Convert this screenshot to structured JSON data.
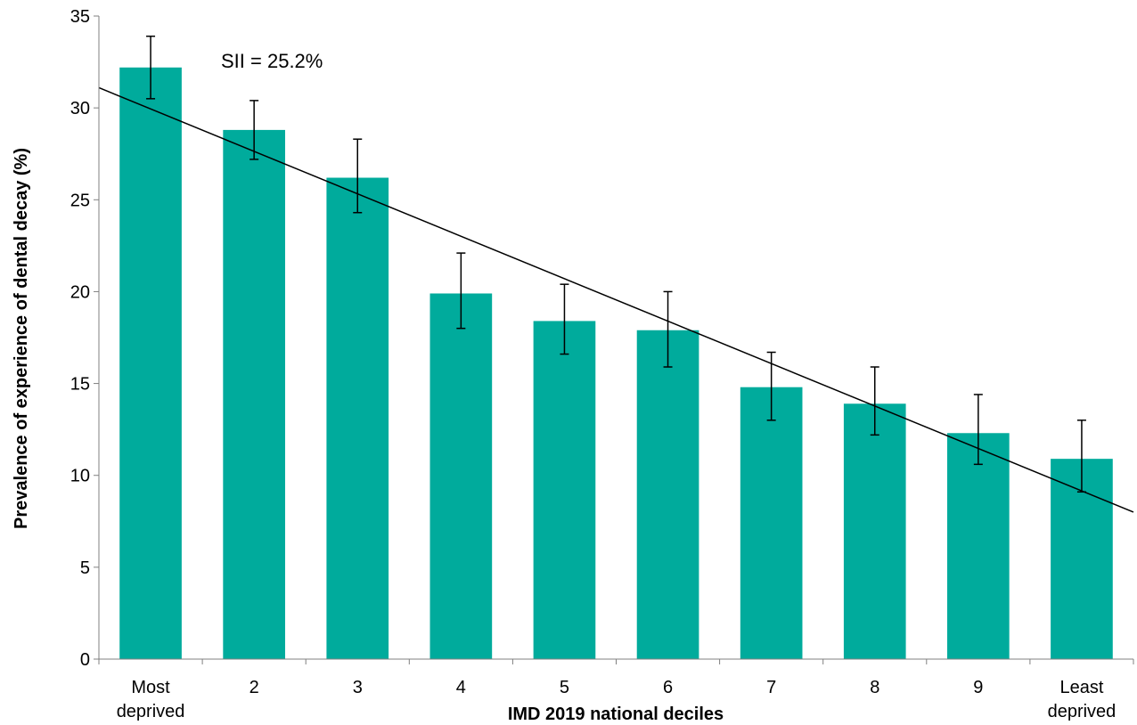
{
  "chart_data": {
    "type": "bar",
    "title": "",
    "xlabel": "IMD 2019 national deciles",
    "ylabel": "Prevalence of experience of dental decay (%)",
    "ylim": [
      0,
      35
    ],
    "yticks": [
      0,
      5,
      10,
      15,
      20,
      25,
      30,
      35
    ],
    "grid": false,
    "categories": [
      [
        "Most",
        "deprived"
      ],
      [
        "2"
      ],
      [
        "3"
      ],
      [
        "4"
      ],
      [
        "5"
      ],
      [
        "6"
      ],
      [
        "7"
      ],
      [
        "8"
      ],
      [
        "9"
      ],
      [
        "Least",
        "deprived"
      ]
    ],
    "values": [
      32.2,
      28.8,
      26.2,
      19.9,
      18.4,
      17.9,
      14.8,
      13.9,
      12.3,
      10.9
    ],
    "error_low": [
      30.5,
      27.2,
      24.3,
      18.0,
      16.6,
      15.9,
      13.0,
      12.2,
      10.6,
      9.1
    ],
    "error_high": [
      33.9,
      30.4,
      28.3,
      22.1,
      20.4,
      20.0,
      16.7,
      15.9,
      14.4,
      13.0
    ],
    "trendline": {
      "x": [
        0.5,
        10.5
      ],
      "y": [
        31.1,
        8.0
      ]
    },
    "annotation": "SII = 25.2%",
    "bar_color": "#00AB9C",
    "line_color": "#000000"
  }
}
